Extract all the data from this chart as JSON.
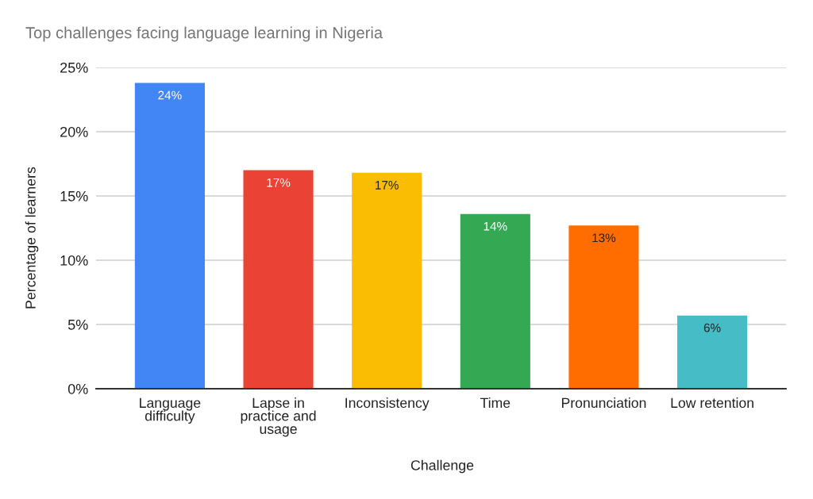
{
  "chart_data": {
    "type": "bar",
    "title": "Top challenges facing language learning in Nigeria",
    "xlabel": "Challenge",
    "ylabel": "Percentage of learners",
    "categories": [
      "Language difficulty",
      "Lapse in practice and usage",
      "Inconsistency",
      "Time",
      "Pronunciation",
      "Low retention"
    ],
    "values": [
      23.8,
      17.0,
      16.8,
      13.6,
      12.7,
      5.7
    ],
    "value_labels": [
      "24%",
      "17%",
      "17%",
      "14%",
      "13%",
      "6%"
    ],
    "colors": [
      "#4285f4",
      "#ea4335",
      "#fbbc04",
      "#34a853",
      "#ff6d01",
      "#46bdc6"
    ],
    "ylim": [
      0,
      25
    ],
    "yticks": [
      {
        "value": 0,
        "label": "0%"
      },
      {
        "value": 5,
        "label": "5%"
      },
      {
        "value": 10,
        "label": "10%"
      },
      {
        "value": 15,
        "label": "15%"
      },
      {
        "value": 20,
        "label": "20%"
      },
      {
        "value": 25,
        "label": "25%"
      }
    ],
    "grid": "y",
    "legend": false
  }
}
